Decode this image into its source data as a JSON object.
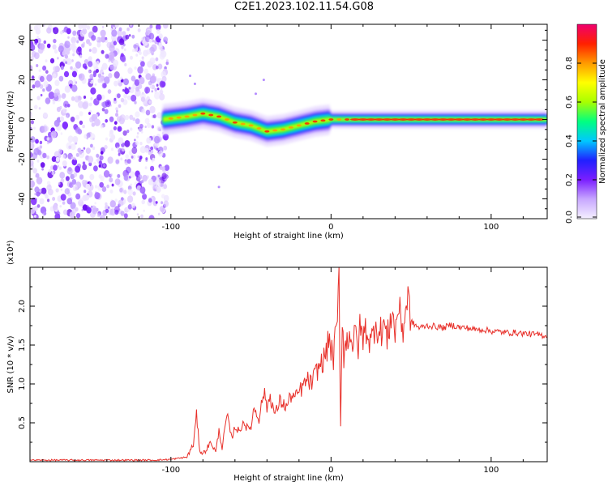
{
  "title": "C2E1.2023.102.11.54.G08",
  "colors": {
    "snr_line": "#e8302a",
    "spectrogram_band": "#00c8a0",
    "spectrogram_noise": "#8a3cff",
    "colorbar_stops": [
      "#f4f0ff",
      "#c8a8ff",
      "#7b1fff",
      "#2020ff",
      "#00c8ff",
      "#00ff80",
      "#a8ff00",
      "#ffff00",
      "#ff9a00",
      "#ff2000",
      "#f0006e"
    ]
  },
  "chart_data": [
    {
      "type": "heatmap",
      "xlabel": "Height of straight line (km)",
      "ylabel": "Frequency (Hz)",
      "xlim": [
        -188,
        135
      ],
      "ylim": [
        -50,
        48
      ],
      "x_ticks": [
        -100,
        0,
        100
      ],
      "y_ticks": [
        -40,
        -20,
        0,
        20,
        40
      ],
      "noise_region_x": [
        -188,
        -102
      ],
      "band_center_points": [
        [
          -105,
          0
        ],
        [
          -90,
          1.5
        ],
        [
          -80,
          3
        ],
        [
          -70,
          1.5
        ],
        [
          -60,
          -1.5
        ],
        [
          -50,
          -3
        ],
        [
          -40,
          -6
        ],
        [
          -30,
          -5
        ],
        [
          -20,
          -3
        ],
        [
          -10,
          -1
        ],
        [
          0,
          0
        ],
        [
          20,
          0
        ],
        [
          60,
          0
        ],
        [
          100,
          0
        ],
        [
          135,
          0
        ]
      ],
      "colorbar": {
        "label": "Normalized spectral amplitude",
        "range": [
          0,
          1
        ],
        "ticks": [
          0.0,
          0.2,
          0.4,
          0.6,
          0.8
        ]
      }
    },
    {
      "type": "line",
      "xlabel": "Height of straight line (km)",
      "ylabel": "SNR (10 * v/v)",
      "y_multiplier": "(x10⁴)",
      "xlim": [
        -188,
        135
      ],
      "ylim": [
        0,
        2.5
      ],
      "x_ticks": [
        -100,
        0,
        100
      ],
      "y_ticks": [
        0.5,
        1.0,
        1.5,
        2.0
      ],
      "series": [
        {
          "x": [
            -188,
            -150,
            -110,
            -100,
            -90,
            -86,
            -84,
            -82,
            -80,
            -75,
            -72,
            -70,
            -68,
            -65,
            -62,
            -60,
            -57,
            -55,
            -52,
            -50,
            -48,
            -45,
            -42,
            -40,
            -38,
            -35,
            -32,
            -30,
            -28,
            -25,
            -22,
            -20,
            -18,
            -15,
            -12,
            -10,
            -8,
            -5,
            -3,
            -1,
            1,
            3,
            4,
            5,
            6,
            7,
            8,
            10,
            12,
            14,
            15,
            17,
            18,
            20,
            22,
            25,
            28,
            30,
            33,
            35,
            38,
            40,
            42,
            45,
            48,
            50,
            55,
            60,
            65,
            70,
            75,
            80,
            85,
            90,
            95,
            100,
            105,
            110,
            115,
            120,
            125,
            130,
            135
          ],
          "y": [
            0.02,
            0.02,
            0.02,
            0.03,
            0.06,
            0.22,
            0.6,
            0.15,
            0.1,
            0.25,
            0.12,
            0.4,
            0.18,
            0.6,
            0.3,
            0.45,
            0.38,
            0.52,
            0.42,
            0.45,
            0.7,
            0.55,
            0.9,
            0.7,
            0.85,
            0.6,
            0.78,
            0.75,
            0.7,
            0.85,
            0.82,
            0.9,
            0.95,
            1.05,
            1.0,
            1.12,
            1.2,
            1.3,
            1.4,
            1.6,
            1.3,
            1.6,
            1.8,
            2.4,
            0.45,
            1.9,
            1.4,
            1.55,
            1.7,
            1.45,
            1.65,
            1.5,
            1.7,
            1.6,
            1.72,
            1.5,
            1.85,
            1.6,
            1.8,
            1.55,
            1.95,
            1.65,
            2.0,
            1.7,
            2.15,
            1.8,
            1.72,
            1.75,
            1.74,
            1.72,
            1.76,
            1.73,
            1.72,
            1.7,
            1.7,
            1.68,
            1.67,
            1.66,
            1.66,
            1.65,
            1.64,
            1.63,
            1.62
          ]
        }
      ]
    }
  ]
}
